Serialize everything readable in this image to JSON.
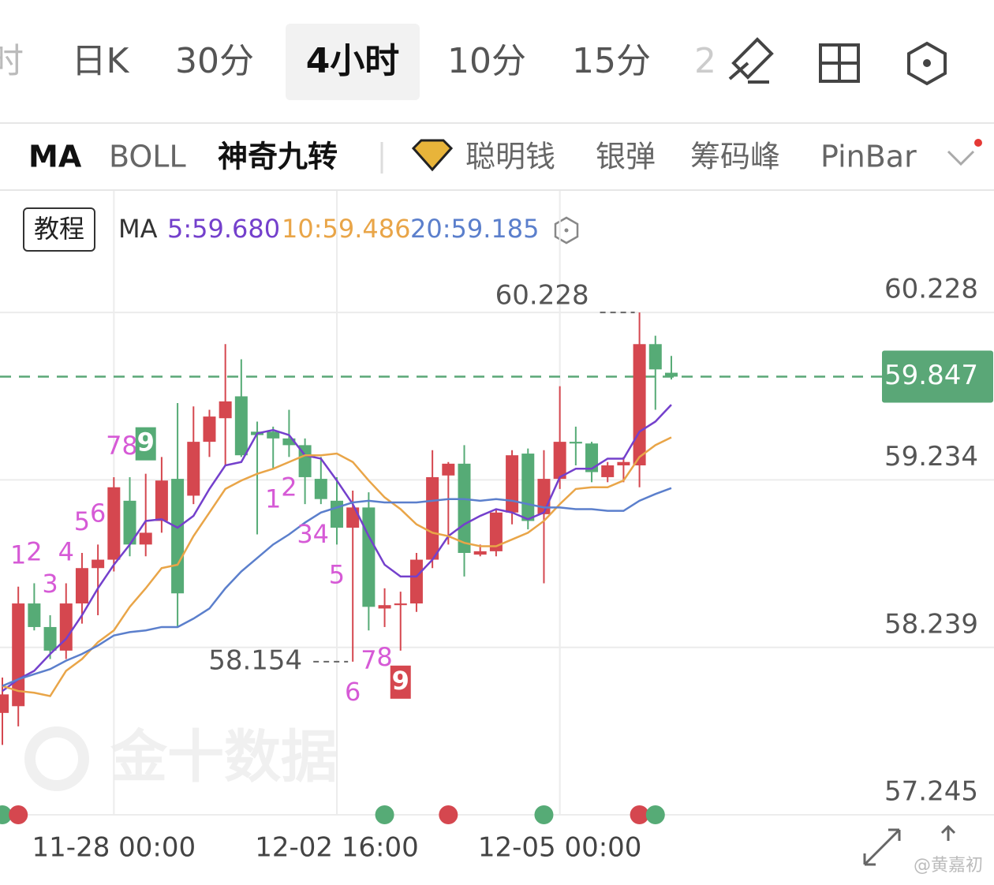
{
  "toolbar": {
    "periods": [
      "时",
      "日K",
      "30分",
      "4小时",
      "10分",
      "15分",
      "2"
    ]
  },
  "indicators": {
    "items": [
      "MA",
      "BOLL",
      "神奇九转",
      "聪明钱",
      "银弹",
      "筹码峰",
      "PinBar"
    ]
  },
  "legend_button": "教程",
  "ma_label": "MA",
  "watermark": "金十数据",
  "credit": "@黄嘉初",
  "chart_data": {
    "type": "candlestick",
    "categories": [
      null,
      null,
      null,
      null,
      null,
      null,
      null,
      "11-28 00:00",
      null,
      null,
      null,
      null,
      null,
      null,
      null,
      null,
      null,
      null,
      null,
      null,
      null,
      "12-02 16:00",
      null,
      null,
      null,
      null,
      null,
      null,
      null,
      null,
      null,
      null,
      null,
      null,
      null,
      "12-05 00:00",
      null,
      null,
      null,
      null,
      null,
      null,
      null
    ],
    "open": [
      57.85,
      57.89,
      58.5,
      58.36,
      58.22,
      58.5,
      58.71,
      58.76,
      59.11,
      58.85,
      58.99,
      59.24,
      59.14,
      59.46,
      59.6,
      59.73,
      59.52,
      59.52,
      59.48,
      59.44,
      59.24,
      59.11,
      58.95,
      59.07,
      58.47,
      58.49,
      58.5,
      58.76,
      59.26,
      59.33,
      58.79,
      58.81,
      59.04,
      59.39,
      59.03,
      59.24,
      59.46,
      59.45,
      59.25,
      59.32,
      59.32,
      60.04,
      59.87
    ],
    "high": [
      58.06,
      58.6,
      58.62,
      58.43,
      58.62,
      58.8,
      58.85,
      59.25,
      59.25,
      59.27,
      59.37,
      59.69,
      59.67,
      59.65,
      60.04,
      59.95,
      59.58,
      59.55,
      59.65,
      59.48,
      59.37,
      59.25,
      59.17,
      59.16,
      58.59,
      58.57,
      58.8,
      59.41,
      59.34,
      59.44,
      58.85,
      59.06,
      59.41,
      59.42,
      59.41,
      59.79,
      59.55,
      59.46,
      59.34,
      59.37,
      60.228,
      60.09,
      59.97
    ],
    "low": [
      57.66,
      57.77,
      58.34,
      58.17,
      58.17,
      58.38,
      58.43,
      58.69,
      58.78,
      58.78,
      58.92,
      58.36,
      59.09,
      59.37,
      59.32,
      59.37,
      58.91,
      59.3,
      59.37,
      59.09,
      59.09,
      58.85,
      58.154,
      58.34,
      58.36,
      58.22,
      58.45,
      58.71,
      58.85,
      58.66,
      58.78,
      58.78,
      58.97,
      58.94,
      58.62,
      59.18,
      59.32,
      59.22,
      59.22,
      59.22,
      59.19,
      59.65,
      59.83
    ],
    "close": [
      57.96,
      58.5,
      58.36,
      58.22,
      58.5,
      58.71,
      58.76,
      59.19,
      58.85,
      58.92,
      59.23,
      58.56,
      59.46,
      59.61,
      59.7,
      59.38,
      59.5,
      59.48,
      59.44,
      59.25,
      59.12,
      58.95,
      59.07,
      58.48,
      58.49,
      58.5,
      58.76,
      59.25,
      59.33,
      58.8,
      58.81,
      59.04,
      59.38,
      58.99,
      59.24,
      59.46,
      59.45,
      59.28,
      59.32,
      59.34,
      60.04,
      59.89,
      59.847
    ],
    "up_color": "#d5474f",
    "down_color": "#56ab76",
    "series": [
      {
        "legend": "5:59.680",
        "color": "#7440cc",
        "values": [
          57.98,
          58.05,
          58.1,
          58.2,
          58.29,
          58.43,
          58.59,
          58.73,
          58.85,
          58.99,
          59.0,
          58.95,
          59.02,
          59.18,
          59.32,
          59.34,
          59.51,
          59.53,
          59.5,
          59.38,
          59.36,
          59.23,
          59.09,
          58.9,
          58.73,
          58.66,
          58.66,
          58.76,
          58.9,
          58.97,
          59.02,
          59.06,
          59.04,
          59.0,
          59.04,
          59.25,
          59.3,
          59.3,
          59.36,
          59.36,
          59.52,
          59.58,
          59.68
        ]
      },
      {
        "legend": "10:59.486",
        "color": "#e9a548",
        "values": [
          58.01,
          57.98,
          57.97,
          57.95,
          58.1,
          58.17,
          58.27,
          58.34,
          58.48,
          58.59,
          58.71,
          58.73,
          58.9,
          59.04,
          59.18,
          59.23,
          59.27,
          59.3,
          59.34,
          59.38,
          59.38,
          59.39,
          59.34,
          59.23,
          59.13,
          59.06,
          58.97,
          58.92,
          58.9,
          58.86,
          58.84,
          58.84,
          58.88,
          58.92,
          58.99,
          59.09,
          59.18,
          59.19,
          59.19,
          59.23,
          59.37,
          59.44,
          59.486
        ]
      },
      {
        "legend": "20:59.185",
        "color": "#5b7fcc",
        "values": [
          58.01,
          58.05,
          58.08,
          58.11,
          58.16,
          58.2,
          58.25,
          58.31,
          58.33,
          58.34,
          58.36,
          58.36,
          58.41,
          58.47,
          58.59,
          58.69,
          58.77,
          58.85,
          58.91,
          58.98,
          59.04,
          59.07,
          59.1,
          59.11,
          59.1,
          59.1,
          59.1,
          59.11,
          59.12,
          59.12,
          59.11,
          59.12,
          59.11,
          59.09,
          59.07,
          59.07,
          59.06,
          59.06,
          59.05,
          59.05,
          59.11,
          59.15,
          59.185
        ]
      }
    ],
    "ylim": [
      57.245,
      60.95
    ],
    "yticks": [
      57.245,
      58.239,
      59.234,
      60.228
    ],
    "last_price": 59.847,
    "annotations": [
      {
        "value": 60.228,
        "index": 40
      },
      {
        "value": 58.154,
        "index": 22
      }
    ],
    "td_labels": [
      {
        "label": "1",
        "index": 1,
        "side": "above"
      },
      {
        "label": "2",
        "index": 2,
        "side": "above"
      },
      {
        "label": "3",
        "index": 3,
        "side": "above"
      },
      {
        "label": "4",
        "index": 4,
        "side": "above"
      },
      {
        "label": "5",
        "index": 5,
        "side": "above"
      },
      {
        "label": "6",
        "index": 6,
        "side": "above"
      },
      {
        "label": "7",
        "index": 7,
        "side": "above"
      },
      {
        "label": "8",
        "index": 8,
        "side": "above"
      },
      {
        "label": "9",
        "index": 9,
        "side": "above",
        "color": "#56ab76"
      },
      {
        "label": "1",
        "index": 17,
        "side": "below"
      },
      {
        "label": "2",
        "index": 18,
        "side": "below"
      },
      {
        "label": "3",
        "index": 19,
        "side": "below"
      },
      {
        "label": "4",
        "index": 20,
        "side": "below"
      },
      {
        "label": "5",
        "index": 21,
        "side": "below"
      },
      {
        "label": "6",
        "index": 22,
        "side": "below"
      },
      {
        "label": "7",
        "index": 23,
        "side": "below"
      },
      {
        "label": "8",
        "index": 24,
        "side": "below"
      },
      {
        "label": "9",
        "index": 25,
        "side": "below",
        "color": "#d5474f"
      }
    ],
    "signal_dots": [
      {
        "index": 0,
        "color": "#56ab76"
      },
      {
        "index": 1,
        "color": "#d5474f"
      },
      {
        "index": 24,
        "color": "#56ab76"
      },
      {
        "index": 28,
        "color": "#d5474f"
      },
      {
        "index": 34,
        "color": "#56ab76"
      },
      {
        "index": 40,
        "color": "#d5474f"
      },
      {
        "index": 41,
        "color": "#56ab76"
      }
    ]
  }
}
